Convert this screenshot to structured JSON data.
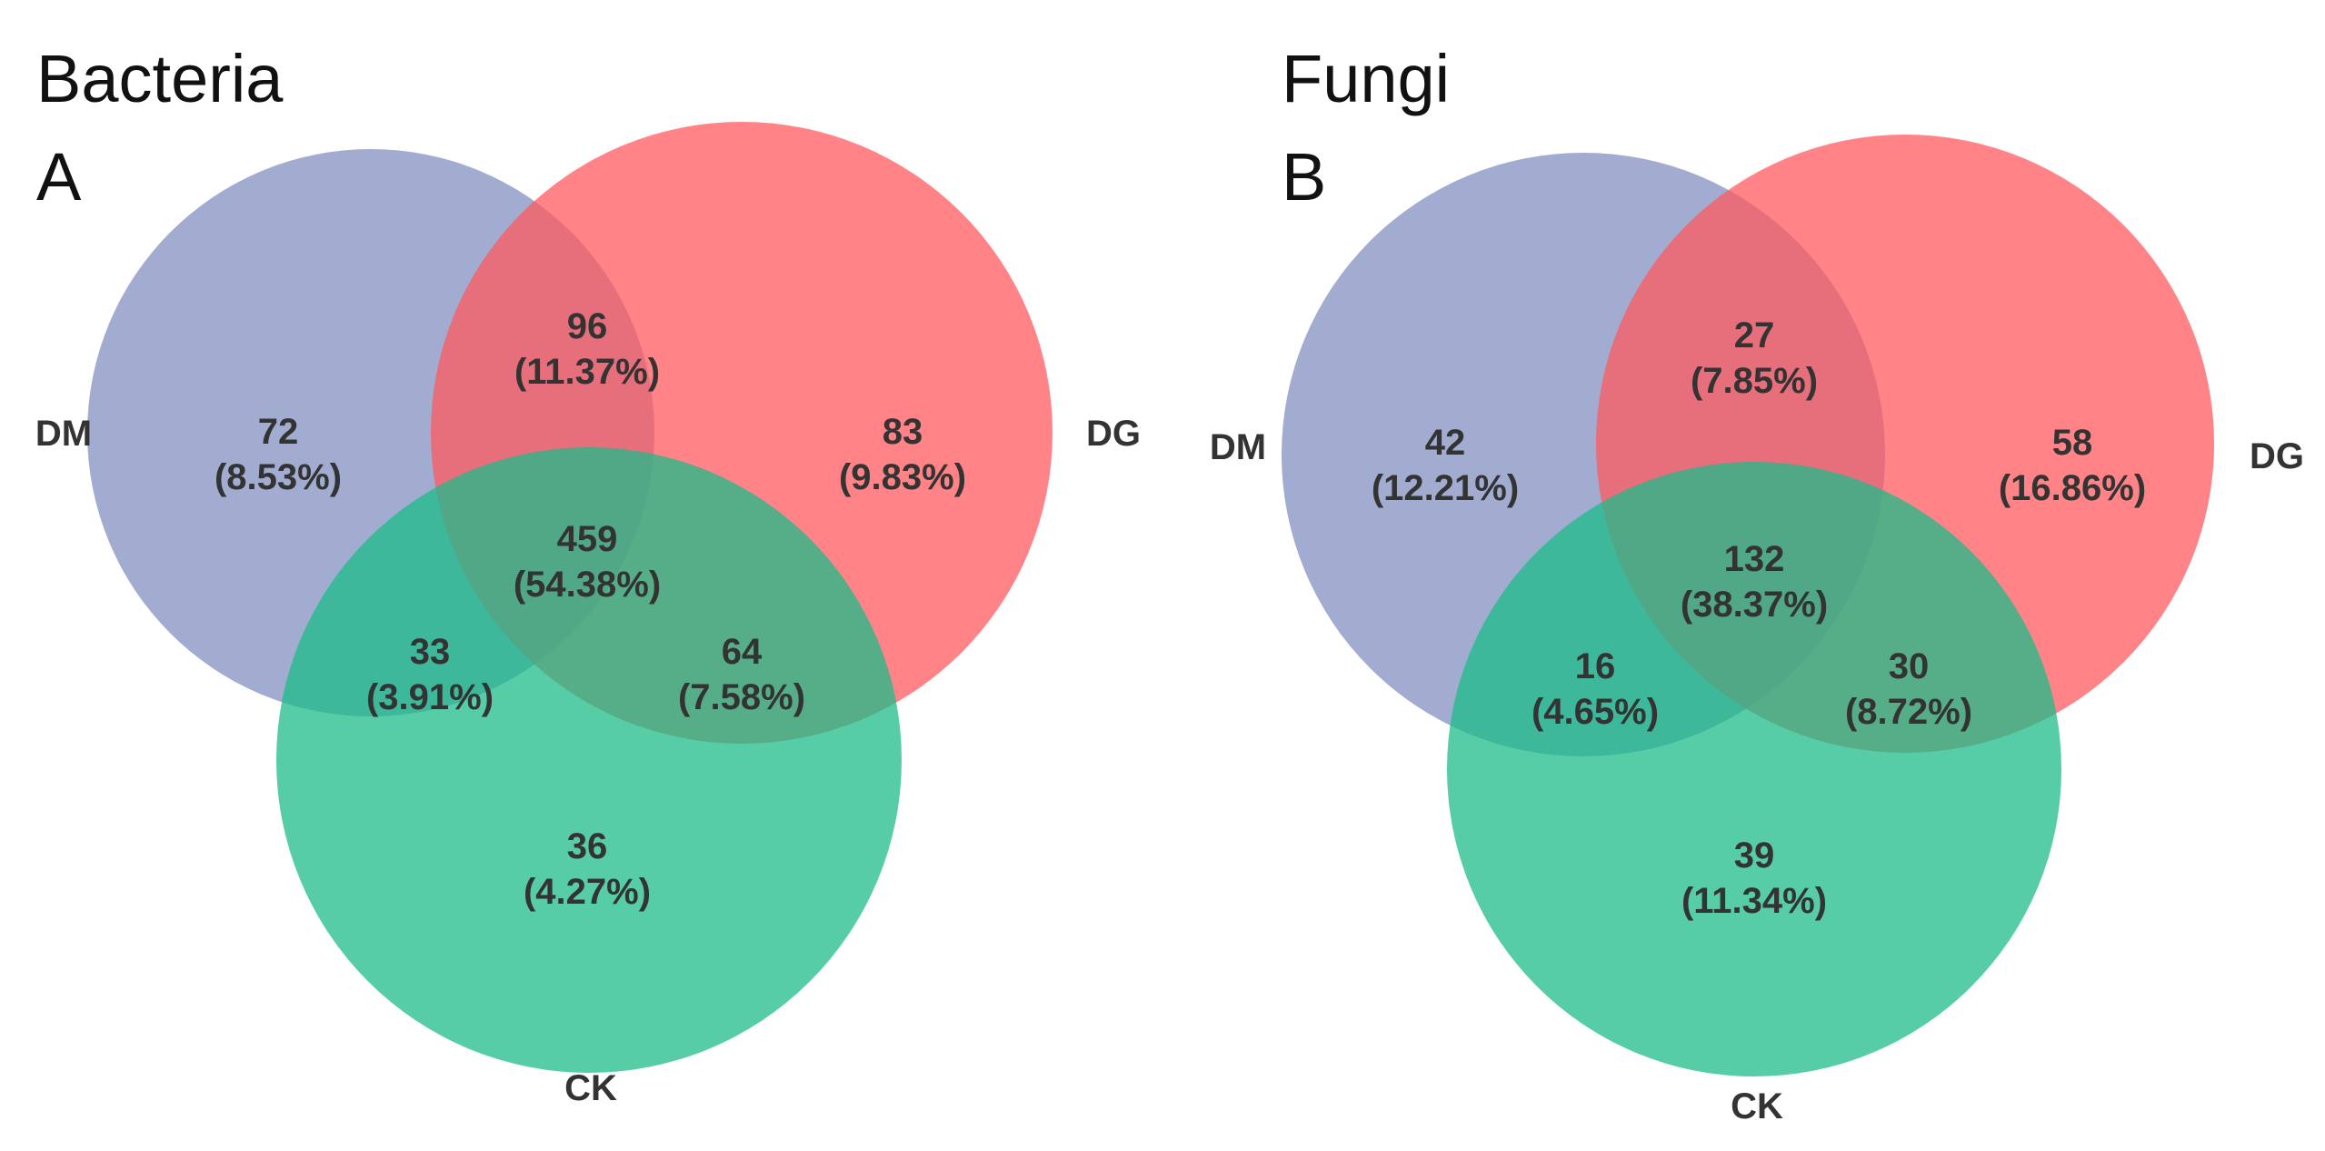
{
  "colors": {
    "DM": "#8190c0",
    "DG": "#ff5a5f",
    "CK": "#1dbc8a"
  },
  "panels": [
    {
      "title": "Bacteria",
      "letter": "A",
      "sets": [
        "DM",
        "DG",
        "CK"
      ],
      "regions": {
        "DM_only": {
          "count": "72",
          "percent": "(8.53%)"
        },
        "DG_only": {
          "count": "83",
          "percent": "(9.83%)"
        },
        "CK_only": {
          "count": "36",
          "percent": "(4.27%)"
        },
        "DM_DG": {
          "count": "96",
          "percent": "(11.37%)"
        },
        "DM_CK": {
          "count": "33",
          "percent": "(3.91%)"
        },
        "DG_CK": {
          "count": "64",
          "percent": "(7.58%)"
        },
        "all": {
          "count": "459",
          "percent": "(54.38%)"
        }
      }
    },
    {
      "title": "Fungi",
      "letter": "B",
      "sets": [
        "DM",
        "DG",
        "CK"
      ],
      "regions": {
        "DM_only": {
          "count": "42",
          "percent": "(12.21%)"
        },
        "DG_only": {
          "count": "58",
          "percent": "(16.86%)"
        },
        "CK_only": {
          "count": "39",
          "percent": "(11.34%)"
        },
        "DM_DG": {
          "count": "27",
          "percent": "(7.85%)"
        },
        "DM_CK": {
          "count": "16",
          "percent": "(4.65%)"
        },
        "DG_CK": {
          "count": "30",
          "percent": "(8.72%)"
        },
        "all": {
          "count": "132",
          "percent": "(38.37%)"
        }
      }
    }
  ]
}
